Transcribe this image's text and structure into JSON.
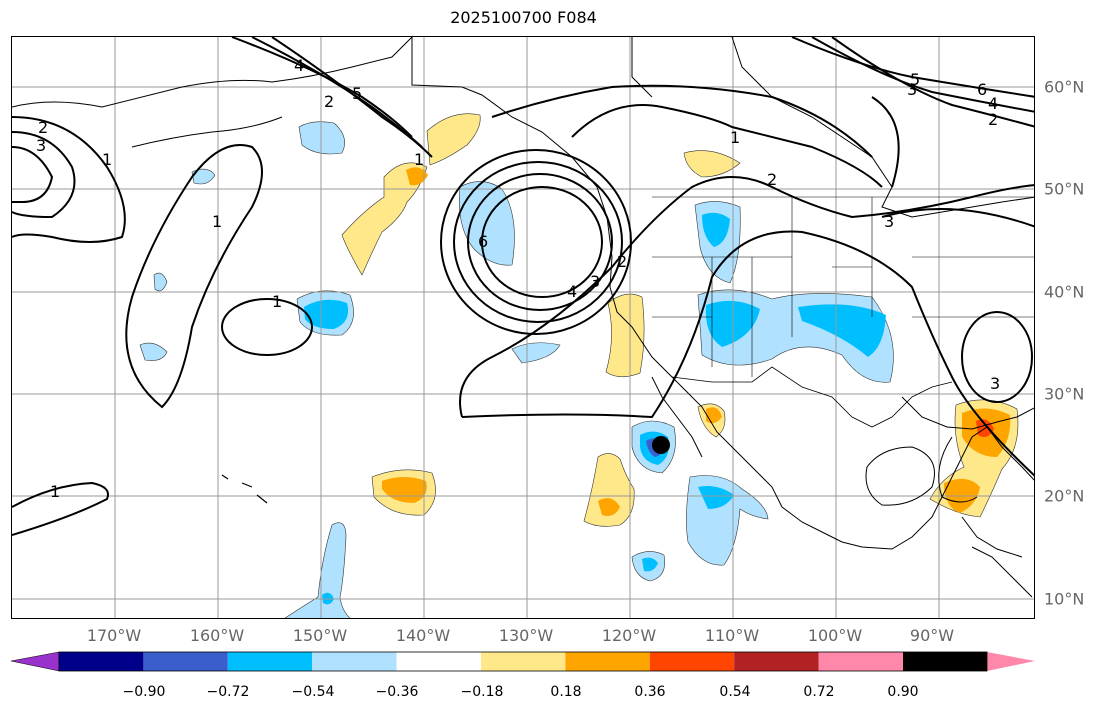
{
  "title": "2025100700 F084",
  "lon_labels": [
    "170°W",
    "160°W",
    "150°W",
    "140°W",
    "130°W",
    "120°W",
    "110°W",
    "100°W",
    "90°W"
  ],
  "lat_labels": [
    "60°N",
    "50°N",
    "40°N",
    "30°N",
    "20°N",
    "10°N"
  ],
  "colorbar": {
    "labels": [
      "−0.90",
      "−0.72",
      "−0.54",
      "−0.36",
      "−0.18",
      "0.18",
      "0.36",
      "0.54",
      "0.72",
      "0.90"
    ],
    "colors": [
      "#9932cc",
      "#00008b",
      "#3a5fcd",
      "#00bfff",
      "#b0e2ff",
      "#ffffff",
      "#ffe88a",
      "#ffa500",
      "#ff4500",
      "#b22222",
      "#ff88aa"
    ]
  },
  "contour_labels": [
    "1",
    "2",
    "3",
    "4",
    "5",
    "6"
  ],
  "marker": "black-dot"
}
